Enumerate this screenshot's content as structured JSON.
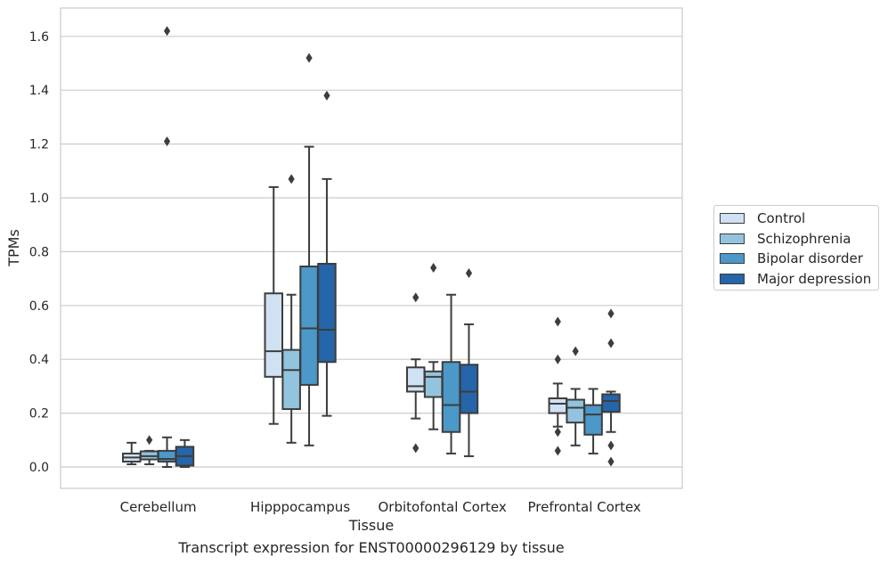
{
  "chart_data": {
    "type": "box",
    "title": "Transcript expression for ENST00000296129 by tissue",
    "xlabel": "Tissue",
    "ylabel": "TPMs",
    "ylim": [
      -0.08,
      1.7
    ],
    "y_ticks": [
      "0.0",
      "0.2",
      "0.4",
      "0.6",
      "0.8",
      "1.0",
      "1.2",
      "1.4",
      "1.6"
    ],
    "grid": "horizontal",
    "legend_position": "right-outside",
    "categories": [
      "Cerebellum",
      "Hipppocampus",
      "Orbitofontal Cortex",
      "Prefrontal Cortex"
    ],
    "series": [
      {
        "name": "Control",
        "color": "#cfe1f2",
        "boxes": [
          {
            "whisker_low": 0.01,
            "q1": 0.02,
            "median": 0.035,
            "q3": 0.05,
            "whisker_high": 0.09,
            "outliers": []
          },
          {
            "whisker_low": 0.16,
            "q1": 0.335,
            "median": 0.43,
            "q3": 0.645,
            "whisker_high": 1.04,
            "outliers": []
          },
          {
            "whisker_low": 0.18,
            "q1": 0.28,
            "median": 0.3,
            "q3": 0.37,
            "whisker_high": 0.4,
            "outliers": [
              0.63,
              0.07
            ]
          },
          {
            "whisker_low": 0.15,
            "q1": 0.2,
            "median": 0.235,
            "q3": 0.255,
            "whisker_high": 0.31,
            "outliers": [
              0.54,
              0.4,
              0.13,
              0.06
            ]
          }
        ]
      },
      {
        "name": "Schizophrenia",
        "color": "#93c4de",
        "boxes": [
          {
            "whisker_low": 0.01,
            "q1": 0.028,
            "median": 0.04,
            "q3": 0.058,
            "whisker_high": 0.06,
            "outliers": [
              0.1
            ]
          },
          {
            "whisker_low": 0.09,
            "q1": 0.215,
            "median": 0.36,
            "q3": 0.435,
            "whisker_high": 0.64,
            "outliers": [
              1.07
            ]
          },
          {
            "whisker_low": 0.14,
            "q1": 0.26,
            "median": 0.335,
            "q3": 0.355,
            "whisker_high": 0.39,
            "outliers": [
              0.74
            ]
          },
          {
            "whisker_low": 0.08,
            "q1": 0.165,
            "median": 0.22,
            "q3": 0.25,
            "whisker_high": 0.29,
            "outliers": [
              0.43
            ]
          }
        ]
      },
      {
        "name": "Bipolar disorder",
        "color": "#4b98c9",
        "boxes": [
          {
            "whisker_low": 0.0,
            "q1": 0.02,
            "median": 0.03,
            "q3": 0.06,
            "whisker_high": 0.11,
            "outliers": [
              1.62,
              1.21
            ]
          },
          {
            "whisker_low": 0.08,
            "q1": 0.305,
            "median": 0.515,
            "q3": 0.745,
            "whisker_high": 1.19,
            "outliers": [
              1.52
            ]
          },
          {
            "whisker_low": 0.05,
            "q1": 0.13,
            "median": 0.23,
            "q3": 0.39,
            "whisker_high": 0.64,
            "outliers": []
          },
          {
            "whisker_low": 0.05,
            "q1": 0.12,
            "median": 0.195,
            "q3": 0.23,
            "whisker_high": 0.29,
            "outliers": []
          }
        ]
      },
      {
        "name": "Major depression",
        "color": "#2565a9",
        "boxes": [
          {
            "whisker_low": 0.0,
            "q1": 0.005,
            "median": 0.04,
            "q3": 0.075,
            "whisker_high": 0.1,
            "outliers": []
          },
          {
            "whisker_low": 0.19,
            "q1": 0.39,
            "median": 0.51,
            "q3": 0.755,
            "whisker_high": 1.07,
            "outliers": [
              1.38
            ]
          },
          {
            "whisker_low": 0.04,
            "q1": 0.2,
            "median": 0.28,
            "q3": 0.38,
            "whisker_high": 0.53,
            "outliers": [
              0.72
            ]
          },
          {
            "whisker_low": 0.13,
            "q1": 0.205,
            "median": 0.245,
            "q3": 0.27,
            "whisker_high": 0.28,
            "outliers": [
              0.57,
              0.46,
              0.08,
              0.02
            ]
          }
        ]
      }
    ]
  }
}
